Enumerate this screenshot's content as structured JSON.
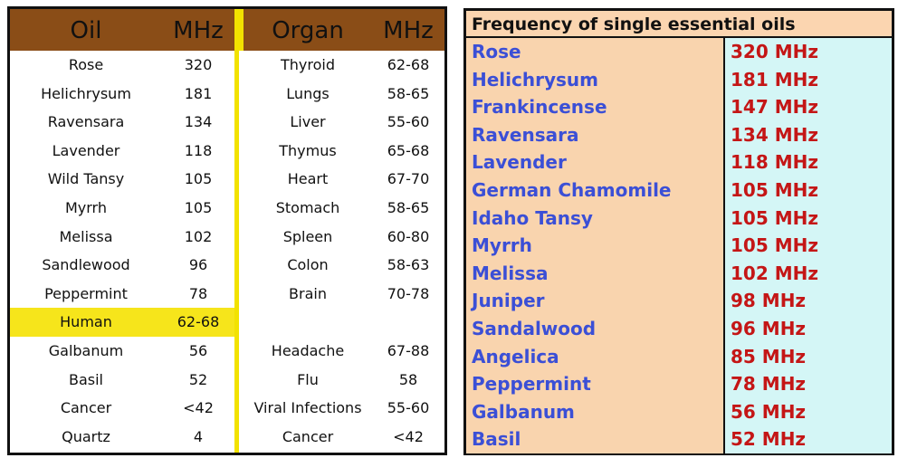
{
  "left_table": {
    "headers": {
      "oil": "Oil",
      "mhz1": "MHz",
      "organ": "Organ",
      "mhz2": "MHz"
    },
    "rows": [
      {
        "oil": "Rose",
        "oil_mhz": "320",
        "organ": "Thyroid",
        "organ_mhz": "62-68"
      },
      {
        "oil": "Helichrysum",
        "oil_mhz": "181",
        "organ": "Lungs",
        "organ_mhz": "58-65"
      },
      {
        "oil": "Ravensara",
        "oil_mhz": "134",
        "organ": "Liver",
        "organ_mhz": "55-60"
      },
      {
        "oil": "Lavender",
        "oil_mhz": "118",
        "organ": "Thymus",
        "organ_mhz": "65-68"
      },
      {
        "oil": "Wild Tansy",
        "oil_mhz": "105",
        "organ": "Heart",
        "organ_mhz": "67-70"
      },
      {
        "oil": "Myrrh",
        "oil_mhz": "105",
        "organ": "Stomach",
        "organ_mhz": "58-65"
      },
      {
        "oil": "Melissa",
        "oil_mhz": "102",
        "organ": "Spleen",
        "organ_mhz": "60-80"
      },
      {
        "oil": "Sandlewood",
        "oil_mhz": "96",
        "organ": "Colon",
        "organ_mhz": "58-63"
      },
      {
        "oil": "Peppermint",
        "oil_mhz": "78",
        "organ": "Brain",
        "organ_mhz": "70-78"
      },
      {
        "oil": "Human",
        "oil_mhz": "62-68",
        "organ": "",
        "organ_mhz": ""
      },
      {
        "oil": "Galbanum",
        "oil_mhz": "56",
        "organ": "Headache",
        "organ_mhz": "67-88"
      },
      {
        "oil": "Basil",
        "oil_mhz": "52",
        "organ": "Flu",
        "organ_mhz": "58"
      },
      {
        "oil": "Cancer",
        "oil_mhz": "<42",
        "organ": "Viral Infections",
        "organ_mhz": "55-60"
      },
      {
        "oil": "Quartz",
        "oil_mhz": "4",
        "organ": "Cancer",
        "organ_mhz": "<42"
      }
    ],
    "colors": {
      "header_bg": "#8a4d17",
      "highlight": "#f6e51b",
      "divider": "#f2e200"
    }
  },
  "right_table": {
    "title": "Frequency of single essential oils",
    "rows": [
      {
        "name": "Rose",
        "freq": "320 MHz"
      },
      {
        "name": "Helichrysum",
        "freq": "181 MHz"
      },
      {
        "name": "Frankincense",
        "freq": "147 MHz"
      },
      {
        "name": "Ravensara",
        "freq": "134 MHz"
      },
      {
        "name": "Lavender",
        "freq": "118 MHz"
      },
      {
        "name": "German Chamomile",
        "freq": "105 MHz"
      },
      {
        "name": "Idaho Tansy",
        "freq": "105 MHz"
      },
      {
        "name": "Myrrh",
        "freq": "105 MHz"
      },
      {
        "name": "Melissa",
        "freq": "102 MHz"
      },
      {
        "name": "Juniper",
        "freq": "98 MHz"
      },
      {
        "name": "Sandalwood",
        "freq": "96 MHz"
      },
      {
        "name": "Angelica",
        "freq": "85 MHz"
      },
      {
        "name": "Peppermint",
        "freq": "78 MHz"
      },
      {
        "name": "Galbanum",
        "freq": "56 MHz"
      },
      {
        "name": "Basil",
        "freq": "52 MHz"
      }
    ],
    "colors": {
      "name_text": "#3b4fd6",
      "freq_text": "#c41616",
      "name_bg": "#f9d4ae",
      "freq_bg": "#d4f6f6"
    }
  }
}
